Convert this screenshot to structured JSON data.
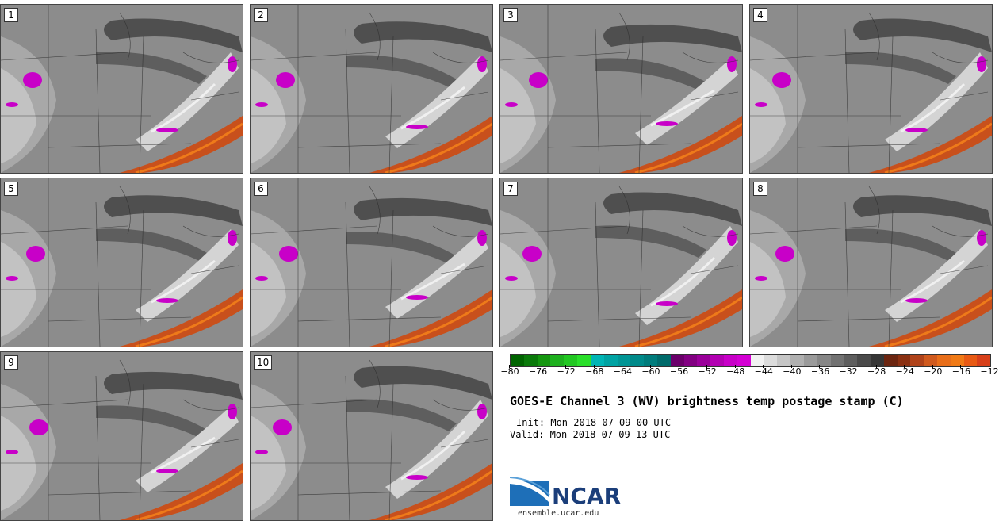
{
  "panels": [
    {
      "label": "1"
    },
    {
      "label": "2"
    },
    {
      "label": "3"
    },
    {
      "label": "4"
    },
    {
      "label": "5"
    },
    {
      "label": "6"
    },
    {
      "label": "7"
    },
    {
      "label": "8"
    },
    {
      "label": "9"
    },
    {
      "label": "10"
    }
  ],
  "colorbar": {
    "colors": [
      "#006400",
      "#0a7a0a",
      "#14960f",
      "#1eb01e",
      "#22c722",
      "#2adf2a",
      "#00b5b5",
      "#00a3a3",
      "#009595",
      "#008a8a",
      "#007c7c",
      "#006b6b",
      "#6a006a",
      "#820082",
      "#9a009a",
      "#b200b2",
      "#c800c8",
      "#d400d4",
      "#f2f2f2",
      "#dcdcdc",
      "#c6c6c6",
      "#b0b0b0",
      "#9a9a9a",
      "#868686",
      "#727272",
      "#5e5e5e",
      "#4a4a4a",
      "#363636",
      "#6b2510",
      "#8a3012",
      "#b0431a",
      "#d05a1e",
      "#e86e1a",
      "#f07a16",
      "#e85a14",
      "#d8401a"
    ],
    "tick_labels": [
      "−80",
      "−76",
      "−72",
      "−68",
      "−64",
      "−60",
      "−56",
      "−52",
      "−48",
      "−44",
      "−40",
      "−36",
      "−32",
      "−28",
      "−24",
      "−20",
      "−16",
      "−12"
    ]
  },
  "title": "GOES-E Channel 3 (WV) brightness temp postage stamp (C)",
  "init": "Init: Mon 2018-07-09 00 UTC",
  "valid": "Valid: Mon 2018-07-09 13 UTC",
  "logo": {
    "name": "NCAR",
    "url": "ensemble.ucar.edu"
  }
}
